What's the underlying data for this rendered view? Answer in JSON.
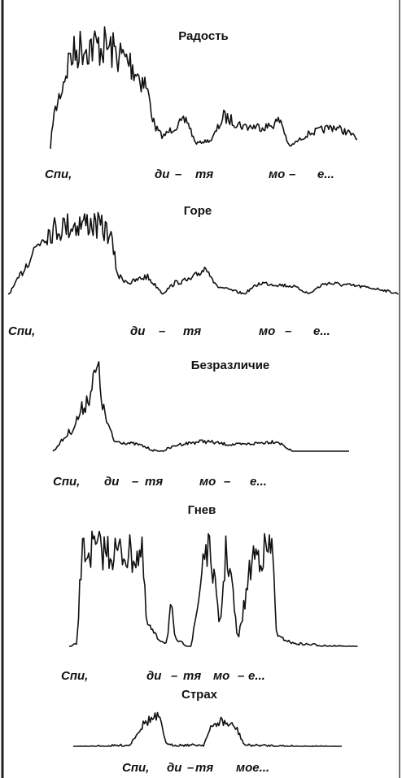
{
  "panels": [
    {
      "title": "Радость",
      "caption": [
        "Спи,",
        "ди",
        "–",
        "тя",
        "мо",
        "–",
        "е..."
      ]
    },
    {
      "title": "Горе",
      "caption": [
        "Спи,",
        "ди",
        "–",
        "тя",
        "мо",
        "–",
        "е..."
      ]
    },
    {
      "title": "Безразличие",
      "caption": [
        "Спи,",
        "ди",
        "–",
        "тя",
        "мо",
        "–",
        "е..."
      ]
    },
    {
      "title": "Гнев",
      "caption": [
        "Спи,",
        "ди",
        "–",
        "тя",
        "мо",
        "–",
        "е..."
      ]
    },
    {
      "title": "Страх",
      "caption": [
        "Спи,",
        "ди",
        "–",
        "тя",
        "мое..."
      ]
    }
  ]
}
